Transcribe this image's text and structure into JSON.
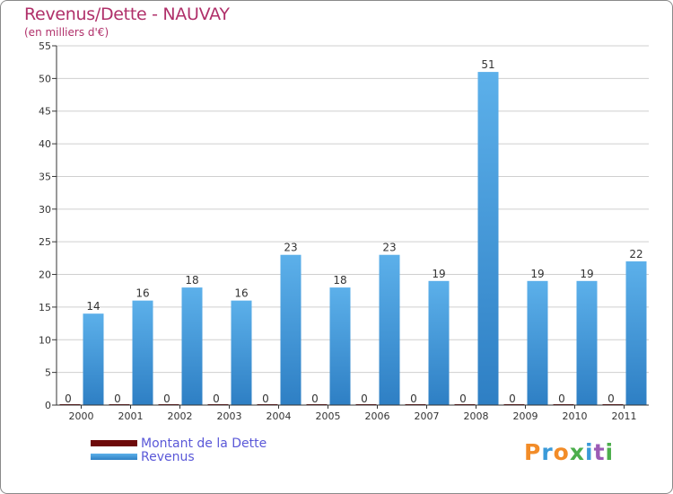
{
  "page": {
    "title": "Revenus/Dette - NAUVAY",
    "subtitle": "(en milliers d'€)",
    "logo": "Proxiti"
  },
  "colors": {
    "title": "#b0306a",
    "dette": "#6e0a0a",
    "revenus": "#4ea6e4",
    "revenus_dark": "#2e7fc4",
    "grid": "#cfcfcf",
    "axis": "#333333",
    "legend_text": "#5a58d8",
    "logo_letters": [
      "#f28c28",
      "#3a9ad9",
      "#f28c28",
      "#4cae4c",
      "#3a9ad9",
      "#9c5bb5",
      "#4cae4c"
    ]
  },
  "chart_data": {
    "type": "bar",
    "title": "Revenus/Dette - NAUVAY",
    "ylabel": "(en milliers d'€)",
    "xlabel": "",
    "categories": [
      "2000",
      "2001",
      "2002",
      "2003",
      "2004",
      "2005",
      "2006",
      "2007",
      "2008",
      "2009",
      "2010",
      "2011"
    ],
    "series": [
      {
        "name": "Montant de la Dette",
        "values": [
          0,
          0,
          0,
          0,
          0,
          0,
          0,
          0,
          0,
          0,
          0,
          0
        ]
      },
      {
        "name": "Revenus",
        "values": [
          14,
          16,
          18,
          16,
          23,
          18,
          23,
          19,
          51,
          19,
          19,
          22
        ]
      }
    ],
    "ylim": [
      0,
      55
    ],
    "yticks": [
      0,
      5,
      10,
      15,
      20,
      25,
      30,
      35,
      40,
      45,
      50,
      55
    ],
    "grid": true,
    "legend_position": "bottom-left"
  }
}
